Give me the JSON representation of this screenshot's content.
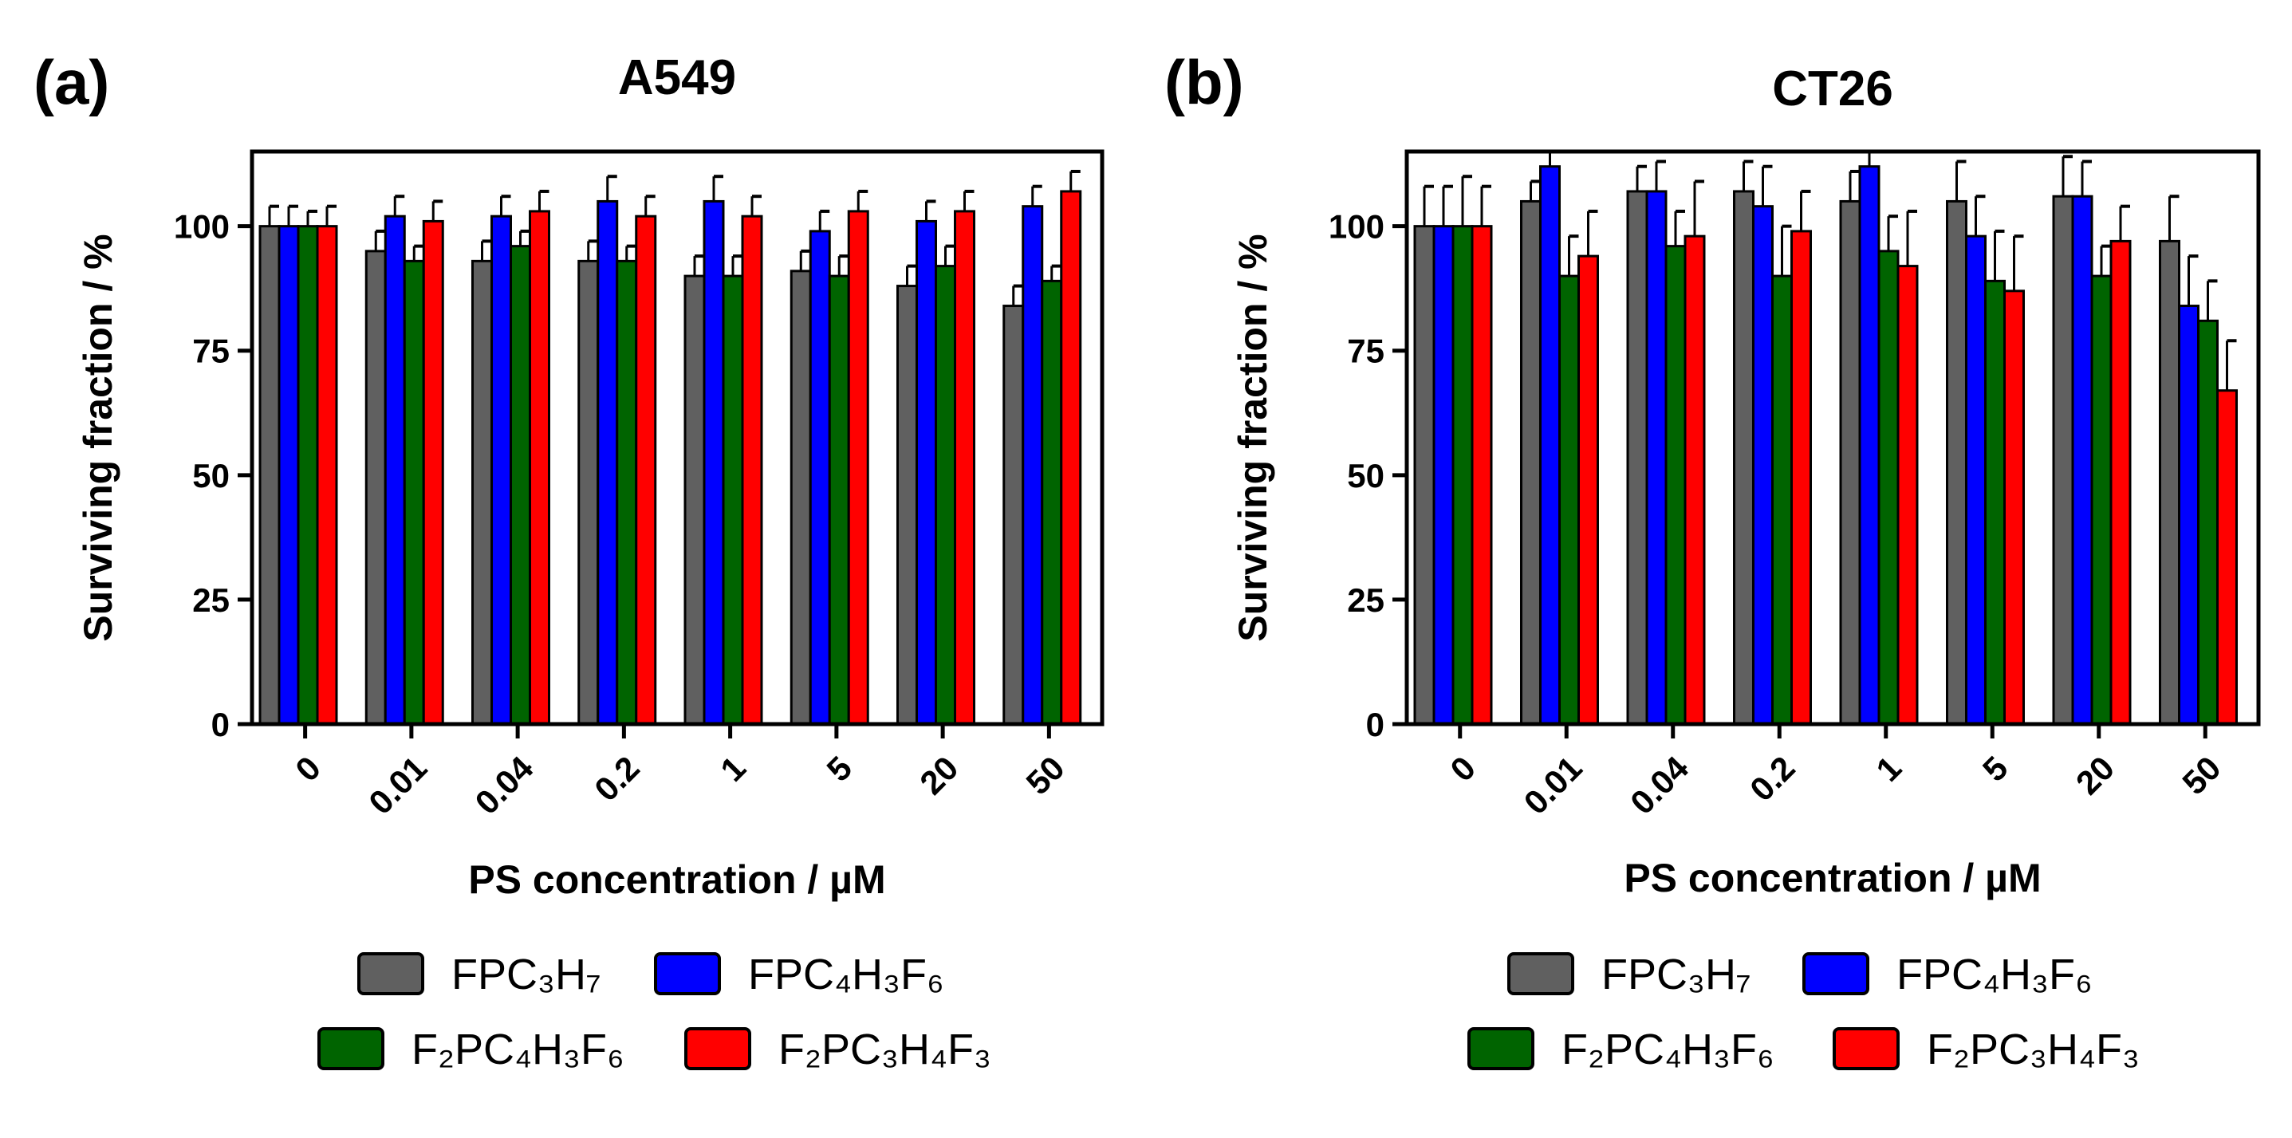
{
  "colors": {
    "FPC3H7": "#606060",
    "FPC4H3F6": "#0000ff",
    "F2PC4H3F6": "#006400",
    "F2PC3H4F3": "#ff0000"
  },
  "chart_data": [
    {
      "type": "bar",
      "panel_label": "(a)",
      "title": "A549",
      "xlabel": "PS concentration / µM",
      "ylabel": "Surviving fraction / %",
      "ylim": [
        0,
        115
      ],
      "yticks": [
        "0",
        "25",
        "50",
        "75",
        "100"
      ],
      "categories": [
        "0",
        "0.01",
        "0.04",
        "0.2",
        "1",
        "5",
        "20",
        "50"
      ],
      "series": [
        {
          "key": "FPC3H7",
          "values": [
            100,
            95,
            93,
            93,
            90,
            91,
            88,
            84
          ],
          "errors": [
            4,
            4,
            4,
            4,
            4,
            4,
            4,
            4
          ]
        },
        {
          "key": "FPC4H3F6",
          "values": [
            100,
            102,
            102,
            105,
            105,
            99,
            101,
            104
          ],
          "errors": [
            4,
            4,
            4,
            5,
            5,
            4,
            4,
            4
          ]
        },
        {
          "key": "F2PC4H3F6",
          "values": [
            100,
            93,
            96,
            93,
            90,
            90,
            92,
            89
          ],
          "errors": [
            3,
            3,
            3,
            3,
            4,
            4,
            4,
            3
          ]
        },
        {
          "key": "F2PC3H4F3",
          "values": [
            100,
            101,
            103,
            102,
            102,
            103,
            103,
            107
          ],
          "errors": [
            4,
            4,
            4,
            4,
            4,
            4,
            4,
            4
          ]
        }
      ]
    },
    {
      "type": "bar",
      "panel_label": "(b)",
      "title": "CT26",
      "xlabel": "PS concentration / µM",
      "ylabel": "Surviving fraction / %",
      "ylim": [
        0,
        115
      ],
      "yticks": [
        "0",
        "25",
        "50",
        "75",
        "100"
      ],
      "categories": [
        "0",
        "0.01",
        "0.04",
        "0.2",
        "1",
        "5",
        "20",
        "50"
      ],
      "series": [
        {
          "key": "FPC3H7",
          "values": [
            100,
            105,
            107,
            107,
            105,
            105,
            106,
            97
          ],
          "errors": [
            8,
            4,
            5,
            6,
            6,
            8,
            8,
            9
          ]
        },
        {
          "key": "FPC4H3F6",
          "values": [
            100,
            112,
            107,
            104,
            112,
            98,
            106,
            84
          ],
          "errors": [
            8,
            3,
            6,
            8,
            3,
            8,
            7,
            10
          ]
        },
        {
          "key": "F2PC4H3F6",
          "values": [
            100,
            90,
            96,
            90,
            95,
            89,
            90,
            81
          ],
          "errors": [
            10,
            8,
            7,
            10,
            7,
            10,
            6,
            8
          ]
        },
        {
          "key": "F2PC3H4F3",
          "values": [
            100,
            94,
            98,
            99,
            92,
            87,
            97,
            67
          ],
          "errors": [
            8,
            9,
            11,
            8,
            11,
            11,
            7,
            10
          ]
        }
      ]
    }
  ],
  "legend": [
    {
      "key": "FPC3H7",
      "label": "FPC₃H₇"
    },
    {
      "key": "FPC4H3F6",
      "label": "FPC₄H₃F₆"
    },
    {
      "key": "F2PC4H3F6",
      "label": "F₂PC₄H₃F₆"
    },
    {
      "key": "F2PC3H4F3",
      "label": "F₂PC₃H₄F₃"
    }
  ]
}
